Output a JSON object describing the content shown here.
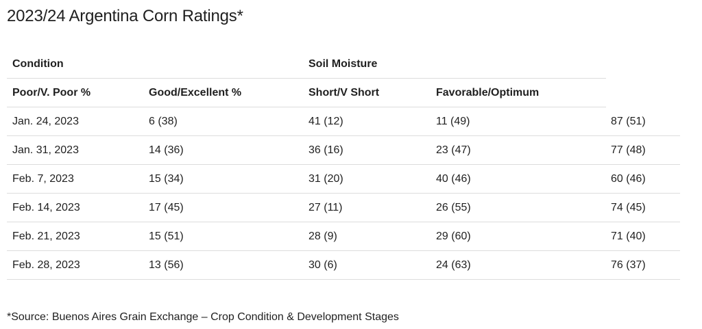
{
  "title": "2023/24 Argentina Corn Ratings*",
  "group_headers": {
    "condition": "Condition",
    "soil_moisture": "Soil Moisture"
  },
  "column_headers": [
    "Poor/V. Poor %",
    "Good/Excellent %",
    "Short/V Short",
    "Favorable/Optimum"
  ],
  "rows": [
    [
      "Jan. 24, 2023",
      "6 (38)",
      "41 (12)",
      "11 (49)",
      "87 (51)"
    ],
    [
      "Jan. 31, 2023",
      "14 (36)",
      "36 (16)",
      "23 (47)",
      "77 (48)"
    ],
    [
      "Feb. 7, 2023",
      "15 (34)",
      "31 (20)",
      "40 (46)",
      "60 (46)"
    ],
    [
      "Feb. 14, 2023",
      "17 (45)",
      "27 (11)",
      "26 (55)",
      "74 (45)"
    ],
    [
      "Feb. 21, 2023",
      "15 (51)",
      "28 (9)",
      "29 (60)",
      "71 (40)"
    ],
    [
      "Feb. 28, 2023",
      "13 (56)",
      "30 (6)",
      "24 (63)",
      "76 (37)"
    ]
  ],
  "source": "*Source: Buenos Aires Grain Exchange – Crop Condition & Development Stages"
}
